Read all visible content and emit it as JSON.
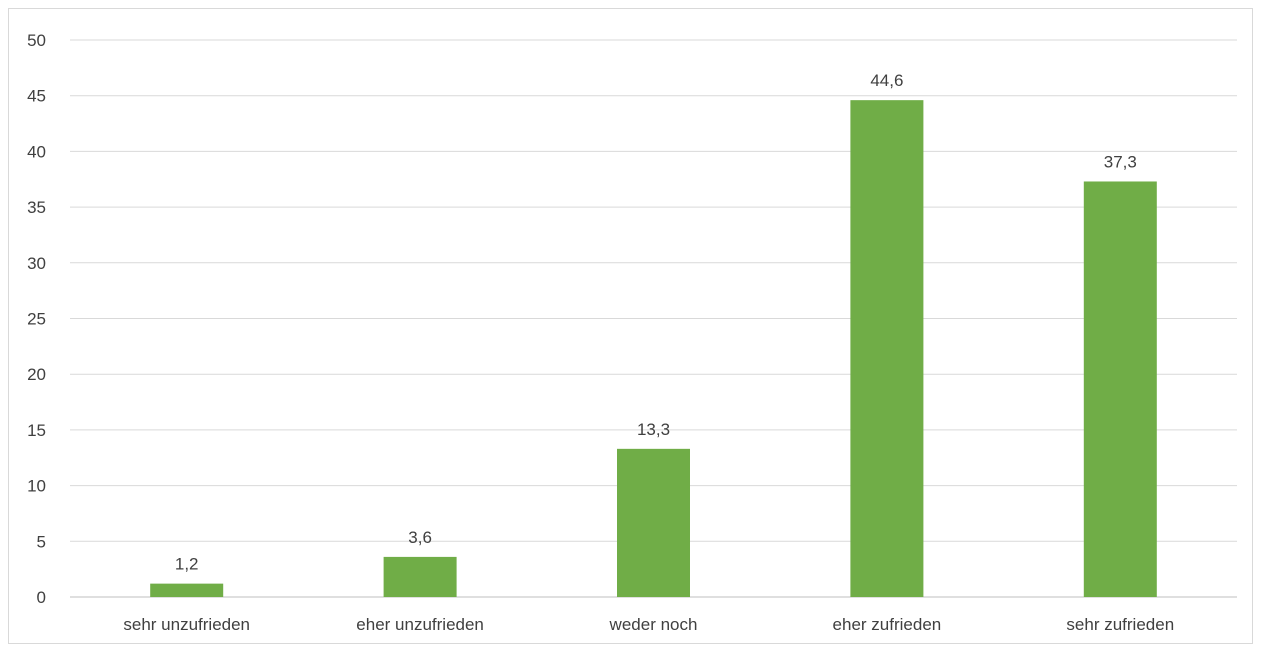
{
  "chart_data": {
    "type": "bar",
    "title": "",
    "xlabel": "",
    "ylabel": "",
    "categories": [
      "sehr unzufrieden",
      "eher unzufrieden",
      "weder noch",
      "eher zufrieden",
      "sehr zufrieden"
    ],
    "values": [
      1.2,
      3.6,
      13.3,
      44.6,
      37.3
    ],
    "value_labels": [
      "1,2",
      "3,6",
      "13,3",
      "44,6",
      "37,3"
    ],
    "ylim": [
      0,
      50
    ],
    "yticks": [
      0,
      5,
      10,
      15,
      20,
      25,
      30,
      35,
      40,
      45,
      50
    ],
    "grid": true,
    "legend": "none",
    "colors": {
      "bar": "#70ad47",
      "grid": "#d9d9d9",
      "axis": "#bfbfbf",
      "text": "#404040"
    }
  }
}
